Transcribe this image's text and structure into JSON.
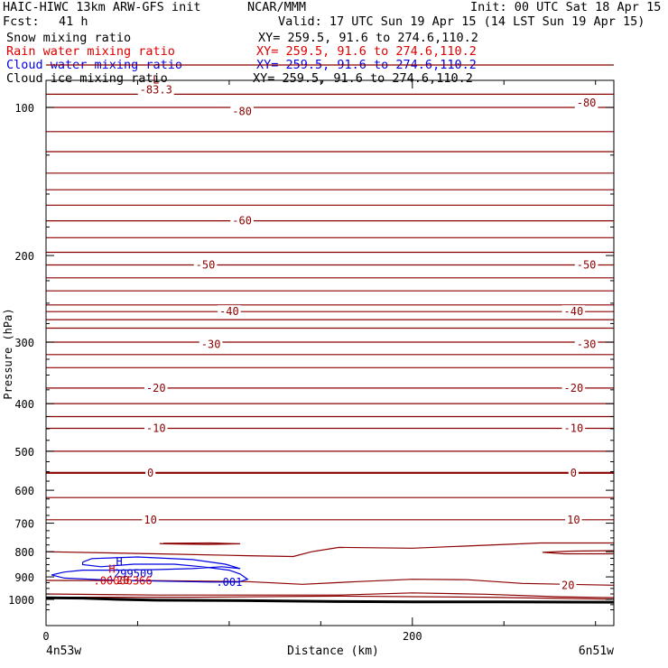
{
  "header": {
    "model_title": "HAIC-HIWC 13km ARW-GFS init",
    "org": "NCAR/MMM",
    "init_text": "Init: 00 UTC Sat 18 Apr 15",
    "fcst_label": "Fcst:",
    "fcst_value": "41 h",
    "valid_text": "Valid: 17 UTC Sun 19 Apr 15 (14 LST Sun 19 Apr 15)"
  },
  "fields": [
    {
      "name": "Snow mixing ratio",
      "xy": "XY= 259.5, 91.6 to 274.6,110.2",
      "color": "#000000"
    },
    {
      "name": "Rain water mixing ratio",
      "xy": "XY= 259.5, 91.6 to 274.6,110.2",
      "color": "#e00000"
    },
    {
      "name": "Cloud water mixing ratio",
      "xy": "XY= 259.5, 91.6 to 274.6,110.2",
      "color": "#0000e0"
    },
    {
      "name": "Cloud ice mixing ratio",
      "xy": "XY= 259.5, 91.6 to 274.6,110.2",
      "color": "#000000"
    }
  ],
  "colors": {
    "temperature_contour": "#8b0000",
    "terrain": "#000000",
    "cloud_water": "#0000e0",
    "rain_water": "#e00000"
  },
  "chart_data": {
    "type": "line",
    "xlabel": "Distance (km)",
    "ylabel": "Pressure (hPa)",
    "xlim": [
      0,
      310
    ],
    "ylim": [
      1050,
      50
    ],
    "y_scale": "log",
    "x_ticks": [
      0,
      200
    ],
    "x_minor_step": 50,
    "y_ticks": [
      100,
      200,
      300,
      400,
      500,
      600,
      700,
      800,
      900,
      1000
    ],
    "y_minor_step": 25,
    "left_endpoint_label": "4n53w",
    "right_endpoint_label": "6n51w",
    "temperature_contour_levels": [
      -80,
      -70,
      -60,
      -50,
      -40,
      -30,
      -20,
      -10,
      0,
      10,
      20
    ],
    "temperature_labels": [
      {
        "text": "-83.3",
        "x": 60,
        "p": 92
      },
      {
        "text": "-80",
        "x": 107,
        "p": 102
      },
      {
        "text": "-80",
        "x": 295,
        "p": 98
      },
      {
        "text": "-60",
        "x": 107,
        "p": 170
      },
      {
        "text": "-50",
        "x": 87,
        "p": 209
      },
      {
        "text": "-50",
        "x": 295,
        "p": 209
      },
      {
        "text": "-40",
        "x": 100,
        "p": 260
      },
      {
        "text": "-40",
        "x": 288,
        "p": 260
      },
      {
        "text": "-30",
        "x": 90,
        "p": 303
      },
      {
        "text": "-30",
        "x": 295,
        "p": 303
      },
      {
        "text": "-20",
        "x": 60,
        "p": 372
      },
      {
        "text": "-20",
        "x": 288,
        "p": 372
      },
      {
        "text": "-10",
        "x": 60,
        "p": 449
      },
      {
        "text": "-10",
        "x": 288,
        "p": 449
      },
      {
        "text": "0",
        "x": 57,
        "p": 553
      },
      {
        "text": "0",
        "x": 288,
        "p": 553
      },
      {
        "text": "10",
        "x": 57,
        "p": 689
      },
      {
        "text": "10",
        "x": 288,
        "p": 689
      },
      {
        "text": "20",
        "x": 42,
        "p": 915
      },
      {
        "text": "20",
        "x": 285,
        "p": 936
      }
    ],
    "extrema": [
      {
        "type": "L",
        "field": "temperature",
        "value": "-83.3",
        "x": 60,
        "p": 88
      },
      {
        "type": "H",
        "field": "cloud_water",
        "value": ".299509",
        "x": 40,
        "p": 860
      },
      {
        "type": "H",
        "field": "rain_water",
        "value": ".00006366",
        "x": 36,
        "p": 890
      }
    ],
    "cloud_water_level_label": ".001"
  }
}
